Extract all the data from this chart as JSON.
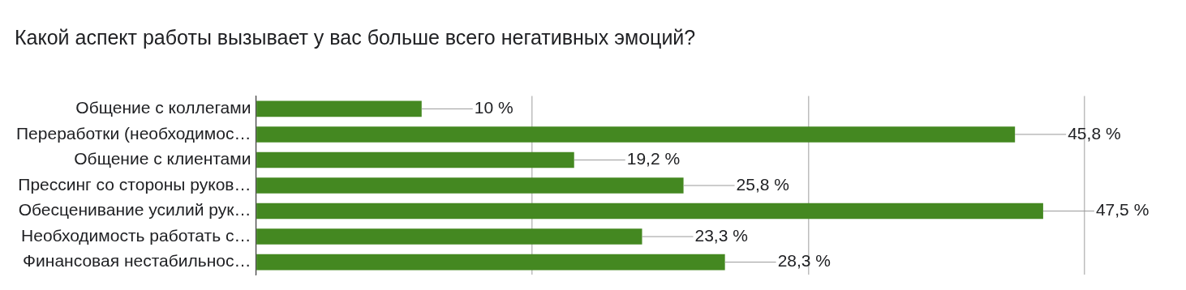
{
  "chart_data": {
    "type": "bar",
    "orientation": "horizontal",
    "title": "Какой аспект работы вызывает у вас больше всего негативных эмоций?",
    "categories": [
      "Общение с коллегами",
      "Переработки (необходимос…",
      "Общение с клиентами",
      "Прессинг со стороны руков…",
      "Обесценивание усилий рук…",
      "Необходимость работать с…",
      "Финансовая нестабильнос…"
    ],
    "values": [
      10,
      45.8,
      19.2,
      25.8,
      47.5,
      23.3,
      28.3
    ],
    "value_labels": [
      "10 %",
      "45,8 %",
      "19,2 %",
      "25,8 %",
      "47,5 %",
      "23,3 %",
      "28,3 %"
    ],
    "color": "#448821",
    "xlim": [
      0,
      50
    ],
    "xticks": [
      {
        "value": 0,
        "label": null
      },
      {
        "value": 16.67,
        "label": null
      },
      {
        "value": 33.33,
        "label": null
      },
      {
        "value": 50,
        "label": null
      }
    ],
    "grid": "x",
    "tick_labels": "y",
    "legend": false
  }
}
